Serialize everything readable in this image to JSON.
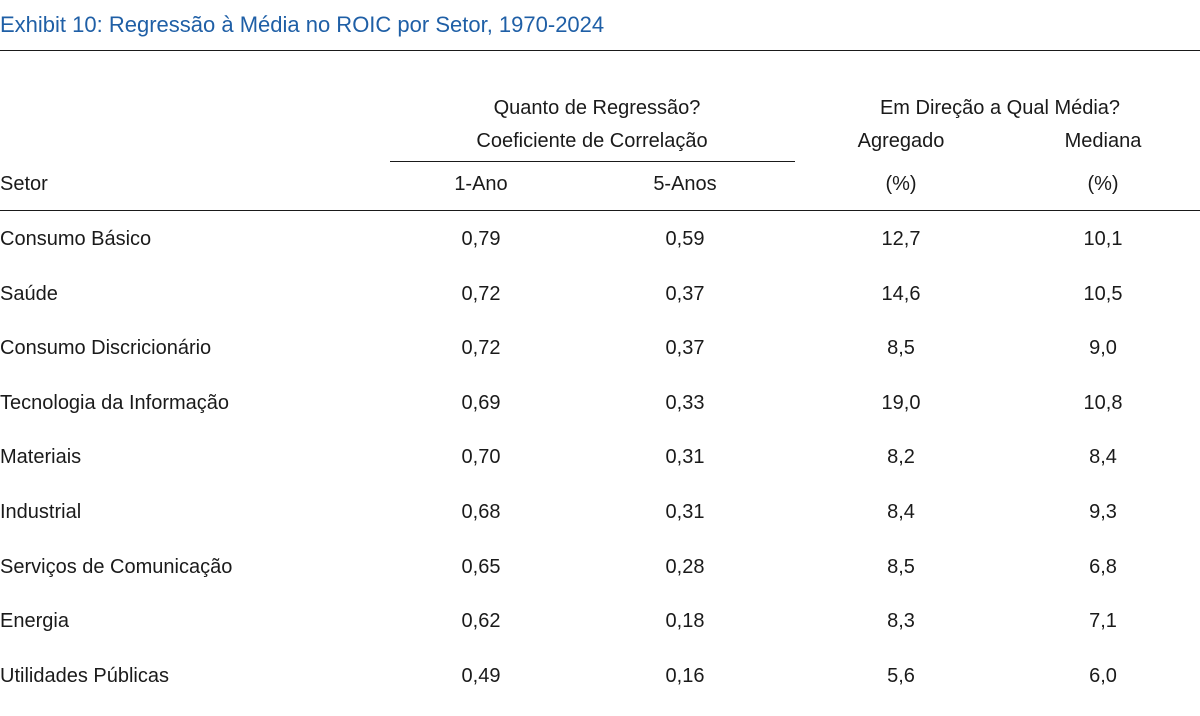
{
  "title": "Exhibit 10: Regressão à Média no ROIC por Setor, 1970-2024",
  "header": {
    "group1_line1": "Quanto de Regressão?",
    "group1_line2": "Coeficiente de Correlação",
    "group2_line1": "Em Direção a Qual Média?",
    "col_sector": "Setor",
    "col_1ano": "1-Ano",
    "col_5anos": "5-Anos",
    "col_agregado": "Agregado",
    "col_agregado_unit": "(%)",
    "col_mediana": "Mediana",
    "col_mediana_unit": "(%)"
  },
  "rows": [
    {
      "setor": "Consumo Básico",
      "ano1": "0,79",
      "anos5": "0,59",
      "agregado": "12,7",
      "mediana": "10,1"
    },
    {
      "setor": "Saúde",
      "ano1": "0,72",
      "anos5": "0,37",
      "agregado": "14,6",
      "mediana": "10,5"
    },
    {
      "setor": "Consumo Discricionário",
      "ano1": "0,72",
      "anos5": "0,37",
      "agregado": "8,5",
      "mediana": "9,0"
    },
    {
      "setor": "Tecnologia da Informação",
      "ano1": "0,69",
      "anos5": "0,33",
      "agregado": "19,0",
      "mediana": "10,8"
    },
    {
      "setor": "Materiais",
      "ano1": "0,70",
      "anos5": "0,31",
      "agregado": "8,2",
      "mediana": "8,4"
    },
    {
      "setor": "Industrial",
      "ano1": "0,68",
      "anos5": "0,31",
      "agregado": "8,4",
      "mediana": "9,3"
    },
    {
      "setor": "Serviços de Comunicação",
      "ano1": "0,65",
      "anos5": "0,28",
      "agregado": "8,5",
      "mediana": "6,8"
    },
    {
      "setor": "Energia",
      "ano1": "0,62",
      "anos5": "0,18",
      "agregado": "8,3",
      "mediana": "7,1"
    },
    {
      "setor": "Utilidades Públicas",
      "ano1": "0,49",
      "anos5": "0,16",
      "agregado": "5,6",
      "mediana": "6,0"
    }
  ]
}
